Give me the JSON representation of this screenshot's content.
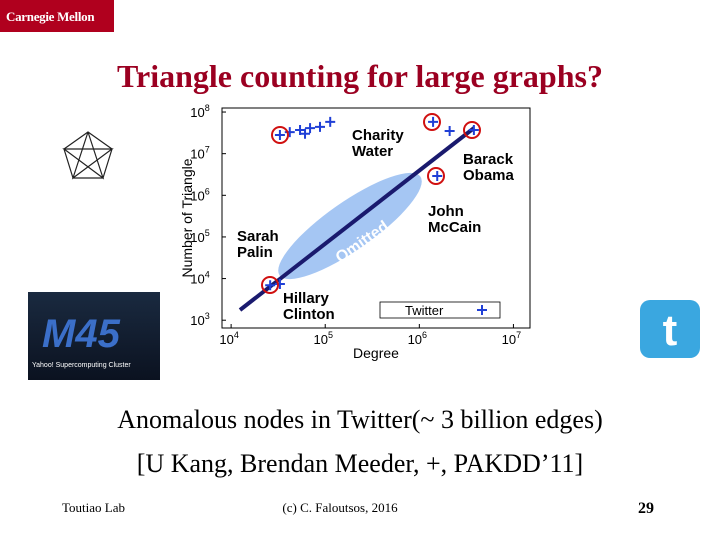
{
  "header": {
    "logo": "Carnegie Mellon",
    "title": "Triangle counting for large graphs?"
  },
  "plot": {
    "type": "scatter",
    "x_label": "Degree",
    "y_label": "Number of Triangle",
    "log_x": true,
    "log_y": true,
    "xlim": [
      8000,
      15000000
    ],
    "ylim": [
      650,
      125000000
    ],
    "xticks": [
      {
        "value": 10000,
        "label": "10",
        "power": "4"
      },
      {
        "value": 100000,
        "label": "10",
        "power": "5"
      },
      {
        "value": 1000000,
        "label": "10",
        "power": "6"
      },
      {
        "value": 10000000,
        "label": "10",
        "power": "7"
      }
    ],
    "yticks": [
      {
        "value": 1000,
        "label": "10",
        "power": "3"
      },
      {
        "value": 10000,
        "label": "10",
        "power": "4"
      },
      {
        "value": 100000,
        "label": "10",
        "power": "5"
      },
      {
        "value": 1000000,
        "label": "10",
        "power": "6"
      },
      {
        "value": 10000000,
        "label": "10",
        "power": "7"
      },
      {
        "value": 100000000,
        "label": "10",
        "power": "8"
      }
    ],
    "series": [
      {
        "name": "Twitter",
        "color": "#1f3fd6",
        "x": [
          33000,
          42000,
          54000,
          69000,
          88000,
          113000,
          61000,
          1400000,
          2100000,
          3800000,
          1550000,
          26000,
          33000
        ],
        "y": [
          28000000,
          33000000,
          37000000,
          41000000,
          44000000,
          58000000,
          30000000,
          58000000,
          35000000,
          37000000,
          2900000,
          6900,
          7400
        ]
      }
    ],
    "annotations": [
      {
        "lines": [
          "Charity",
          "Water"
        ]
      },
      {
        "lines": [
          "Barack",
          "Obama"
        ]
      },
      {
        "lines": [
          "John",
          "McCain"
        ]
      },
      {
        "lines": [
          "Sarah",
          "Palin"
        ]
      },
      {
        "lines": [
          "Hillary",
          "Clinton"
        ]
      },
      {
        "lines": [
          "Omitted"
        ]
      }
    ]
  },
  "m45": {
    "logo": "M45",
    "caption": "Yahoo! Supercomputing Cluster"
  },
  "body": {
    "lines": [
      "Anomalous nodes in Twitter(~ 3 billion edges)",
      "[U Kang, Brendan Meeder, +, PAKDD’11]"
    ]
  },
  "footer": {
    "left": "Toutiao Lab",
    "center": "(c) C. Faloutsos, 2016",
    "page": "29"
  }
}
